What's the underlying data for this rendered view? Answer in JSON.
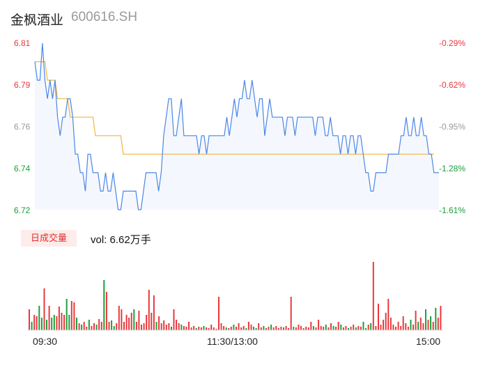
{
  "header": {
    "name": "金枫酒业",
    "code": "600616.SH"
  },
  "volume_button_label": "日成交量",
  "volume_text": "vol: 6.62万手",
  "colors": {
    "price": "#4a86e8",
    "avg": "#f2b53a",
    "up": "#e8383d",
    "down": "#1aa03c",
    "fill": "#f4f7fd"
  },
  "chart_data": [
    {
      "type": "line",
      "title": "",
      "y_left_ticks": [
        "6.81",
        "6.79",
        "6.76",
        "6.74",
        "6.72"
      ],
      "y_right_ticks": [
        "-0.29%",
        "-0.62%",
        "-0.95%",
        "-1.28%",
        "-1.61%"
      ],
      "ylim": [
        6.72,
        6.81
      ],
      "x_ticks": [
        "09:30",
        "11:30/13:00",
        "15:00"
      ],
      "series": [
        {
          "key": "price",
          "values": [
            6.8,
            6.79,
            6.79,
            6.81,
            6.79,
            6.78,
            6.79,
            6.78,
            6.79,
            6.77,
            6.76,
            6.77,
            6.77,
            6.78,
            6.78,
            6.77,
            6.75,
            6.75,
            6.74,
            6.74,
            6.73,
            6.75,
            6.75,
            6.74,
            6.74,
            6.74,
            6.73,
            6.73,
            6.74,
            6.73,
            6.73,
            6.74,
            6.73,
            6.72,
            6.72,
            6.73,
            6.73,
            6.73,
            6.73,
            6.73,
            6.73,
            6.72,
            6.72,
            6.73,
            6.74,
            6.74,
            6.74,
            6.74,
            6.74,
            6.73,
            6.74,
            6.76,
            6.77,
            6.78,
            6.78,
            6.76,
            6.76,
            6.77,
            6.78,
            6.76,
            6.76,
            6.76,
            6.76,
            6.76,
            6.76,
            6.75,
            6.76,
            6.76,
            6.75,
            6.76,
            6.76,
            6.76,
            6.76,
            6.76,
            6.76,
            6.76,
            6.77,
            6.76,
            6.77,
            6.78,
            6.77,
            6.78,
            6.78,
            6.79,
            6.78,
            6.78,
            6.79,
            6.78,
            6.77,
            6.78,
            6.78,
            6.76,
            6.77,
            6.78,
            6.77,
            6.77,
            6.77,
            6.77,
            6.77,
            6.76,
            6.77,
            6.77,
            6.77,
            6.76,
            6.77,
            6.77,
            6.77,
            6.77,
            6.77,
            6.77,
            6.77,
            6.76,
            6.77,
            6.77,
            6.77,
            6.76,
            6.76,
            6.77,
            6.76,
            6.76,
            6.76,
            6.75,
            6.76,
            6.76,
            6.75,
            6.76,
            6.76,
            6.75,
            6.76,
            6.76,
            6.75,
            6.74,
            6.74,
            6.73,
            6.73,
            6.74,
            6.74,
            6.74,
            6.74,
            6.74,
            6.75,
            6.75,
            6.75,
            6.75,
            6.75,
            6.76,
            6.76,
            6.77,
            6.76,
            6.76,
            6.77,
            6.76,
            6.76,
            6.77,
            6.76,
            6.76,
            6.75,
            6.75,
            6.74,
            6.74,
            6.74
          ]
        },
        {
          "key": "avg",
          "values": [
            6.8,
            6.8,
            6.8,
            6.8,
            6.8,
            6.79,
            6.79,
            6.79,
            6.79,
            6.78,
            6.78,
            6.78,
            6.78,
            6.78,
            6.77,
            6.77,
            6.77,
            6.77,
            6.77,
            6.77,
            6.77,
            6.77,
            6.77,
            6.77,
            6.76,
            6.76,
            6.76,
            6.76,
            6.76,
            6.76,
            6.76,
            6.76,
            6.76,
            6.76,
            6.76,
            6.75,
            6.75,
            6.75,
            6.75,
            6.75,
            6.75,
            6.75,
            6.75,
            6.75,
            6.75,
            6.75,
            6.75,
            6.75,
            6.75,
            6.75,
            6.75,
            6.75,
            6.75,
            6.75,
            6.75,
            6.75,
            6.75,
            6.75,
            6.75,
            6.75,
            6.75,
            6.75,
            6.75,
            6.75,
            6.75,
            6.75,
            6.75,
            6.75,
            6.75,
            6.75,
            6.75,
            6.75,
            6.75,
            6.75,
            6.75,
            6.75,
            6.75,
            6.75,
            6.75,
            6.75,
            6.75,
            6.75,
            6.75,
            6.75,
            6.75,
            6.75,
            6.75,
            6.75,
            6.75,
            6.75,
            6.75,
            6.75,
            6.75,
            6.75,
            6.75,
            6.75,
            6.75,
            6.75,
            6.75,
            6.75,
            6.75,
            6.75,
            6.75,
            6.75,
            6.75,
            6.75,
            6.75,
            6.75,
            6.75,
            6.75,
            6.75,
            6.75,
            6.75,
            6.75,
            6.75,
            6.75,
            6.75,
            6.75,
            6.75,
            6.75,
            6.75,
            6.75,
            6.75,
            6.75,
            6.75,
            6.75,
            6.75,
            6.75,
            6.75,
            6.75,
            6.75,
            6.75,
            6.75,
            6.75,
            6.75,
            6.75,
            6.75,
            6.75,
            6.75,
            6.75,
            6.75,
            6.75,
            6.75,
            6.75,
            6.75,
            6.75,
            6.75,
            6.75,
            6.75,
            6.75,
            6.75,
            6.75,
            6.75,
            6.75,
            6.75,
            6.75,
            6.75,
            6.75,
            6.75
          ]
        }
      ]
    },
    {
      "type": "bar",
      "title": "日成交量",
      "values": [
        0.3,
        0.12,
        0.22,
        0.2,
        0.35,
        0.18,
        0.6,
        0.15,
        0.35,
        0.18,
        0.22,
        0.2,
        0.34,
        0.25,
        0.22,
        0.45,
        0.22,
        0.42,
        0.4,
        0.18,
        0.1,
        0.08,
        0.12,
        0.05,
        0.15,
        0.06,
        0.1,
        0.08,
        0.16,
        0.12,
        0.72,
        0.55,
        0.12,
        0.14,
        0.06,
        0.1,
        0.35,
        0.3,
        0.12,
        0.22,
        0.18,
        0.25,
        0.3,
        0.12,
        0.28,
        0.08,
        0.1,
        0.22,
        0.58,
        0.25,
        0.5,
        0.12,
        0.2,
        0.1,
        0.14,
        0.08,
        0.1,
        0.05,
        0.3,
        0.15,
        0.1,
        0.08,
        0.06,
        0.05,
        0.12,
        0.04,
        0.06,
        0.03,
        0.05,
        0.04,
        0.06,
        0.04,
        0.03,
        0.08,
        0.04,
        0.02,
        0.48,
        0.1,
        0.06,
        0.04,
        0.03,
        0.05,
        0.08,
        0.05,
        0.1,
        0.04,
        0.06,
        0.03,
        0.12,
        0.08,
        0.05,
        0.03,
        0.1,
        0.04,
        0.06,
        0.03,
        0.05,
        0.08,
        0.04,
        0.06,
        0.03,
        0.05,
        0.04,
        0.06,
        0.03,
        0.48,
        0.05,
        0.04,
        0.08,
        0.06,
        0.03,
        0.05,
        0.04,
        0.12,
        0.06,
        0.04,
        0.15,
        0.06,
        0.05,
        0.08,
        0.04,
        0.1,
        0.06,
        0.05,
        0.12,
        0.08,
        0.04,
        0.06,
        0.03,
        0.05,
        0.08,
        0.04,
        0.06,
        0.05,
        0.12,
        0.03,
        0.08,
        0.1,
        0.98,
        0.06,
        0.38,
        0.08,
        0.15,
        0.25,
        0.45,
        0.18,
        0.08,
        0.05,
        0.12,
        0.06,
        0.2,
        0.1,
        0.05,
        0.15,
        0.08,
        0.28,
        0.12,
        0.18,
        0.1,
        0.3,
        0.15,
        0.2,
        0.12,
        0.32,
        0.18,
        0.35
      ]
    }
  ]
}
